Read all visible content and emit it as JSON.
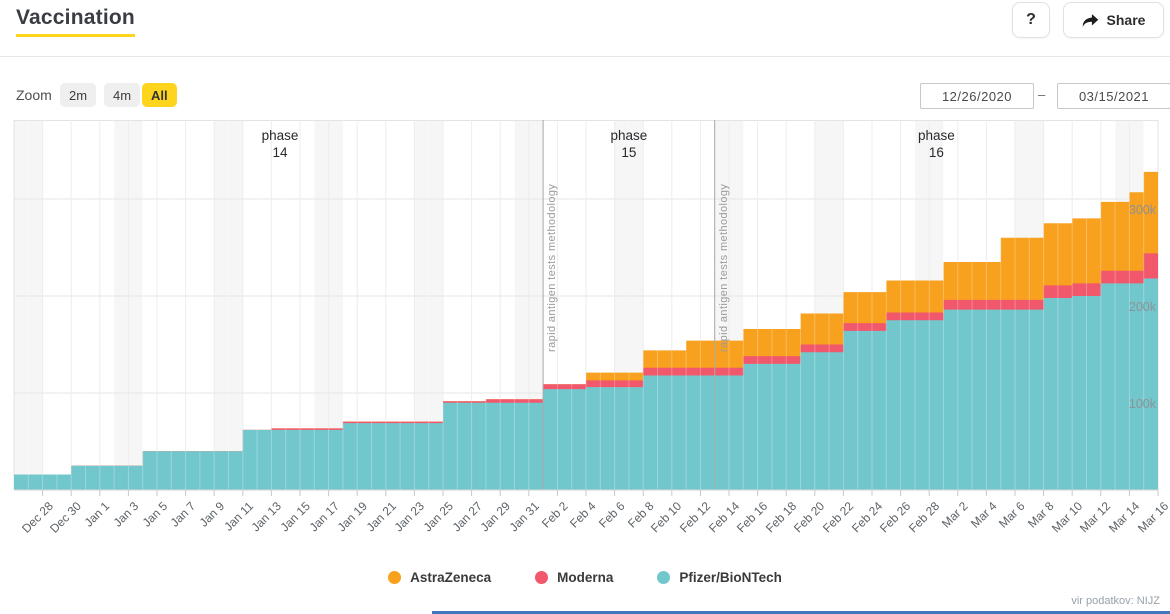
{
  "header": {
    "title": "Vaccination",
    "help_label": "?",
    "share_label": "Share"
  },
  "controls": {
    "zoom_label": "Zoom",
    "range_buttons": [
      {
        "label": "2m",
        "active": false
      },
      {
        "label": "4m",
        "active": false
      },
      {
        "label": "All",
        "active": true
      }
    ],
    "date_from": "12/26/2020",
    "date_separator": "–",
    "date_to": "03/15/2021"
  },
  "colors": {
    "accent_yellow": "#ffd41d",
    "astrazeneca": "#F8A11E",
    "moderna": "#F2586B",
    "pfizer": "#72C7CD",
    "weekend_band": "#f6f6f6",
    "gridline": "#e8e8e8",
    "annotation_line": "#a6a6a6"
  },
  "chart_data": {
    "type": "area",
    "stacking": "stacked cumulative steps (doses by manufacturer)",
    "x_range": [
      "Dec 26, 2020",
      "Mar 16, 2021"
    ],
    "x_tick_labels": [
      "Dec 28",
      "Dec 30",
      "Jan 1",
      "Jan 3",
      "Jan 5",
      "Jan 7",
      "Jan 9",
      "Jan 11",
      "Jan 13",
      "Jan 15",
      "Jan 17",
      "Jan 19",
      "Jan 21",
      "Jan 23",
      "Jan 25",
      "Jan 27",
      "Jan 29",
      "Jan 31",
      "Feb 2",
      "Feb 4",
      "Feb 6",
      "Feb 8",
      "Feb 10",
      "Feb 12",
      "Feb 14",
      "Feb 16",
      "Feb 18",
      "Feb 20",
      "Feb 22",
      "Feb 24",
      "Feb 26",
      "Feb 28",
      "Mar 2",
      "Mar 4",
      "Mar 6",
      "Mar 8",
      "Mar 10",
      "Mar 12",
      "Mar 14",
      "Mar 16"
    ],
    "y_ticks": [
      {
        "value_thousands": 100,
        "label": "100k"
      },
      {
        "value_thousands": 200,
        "label": "200k"
      },
      {
        "value_thousands": 300,
        "label": "300k"
      }
    ],
    "y_max_thousands": 381,
    "series": [
      {
        "name": "Pfizer/BioNTech",
        "color": "#72C7CD",
        "days": [
          0,
          4,
          9,
          16,
          18,
          23,
          30,
          33,
          37,
          40,
          44,
          47,
          51,
          55,
          58,
          61,
          65,
          69,
          72,
          74,
          76,
          78,
          79
        ],
        "cumulative_thousands": [
          16,
          25,
          40,
          62,
          62,
          69,
          90,
          90,
          104,
          106,
          118,
          118,
          130,
          142,
          164,
          175,
          186,
          186,
          198,
          200,
          213,
          213,
          218
        ]
      },
      {
        "name": "Moderna",
        "color": "#F2586B",
        "days": [
          0,
          4,
          9,
          16,
          18,
          23,
          30,
          33,
          37,
          40,
          44,
          47,
          51,
          55,
          58,
          61,
          65,
          69,
          72,
          74,
          76,
          78,
          79
        ],
        "cumulative_thousands": [
          0,
          0,
          0,
          0,
          1.5,
          1.5,
          1.5,
          3.5,
          5,
          7,
          8,
          8,
          8,
          8,
          8,
          8,
          10,
          10,
          13,
          13,
          13,
          13,
          26
        ]
      },
      {
        "name": "AstraZeneca",
        "color": "#F8A11E",
        "days": [
          0,
          4,
          9,
          16,
          18,
          23,
          30,
          33,
          37,
          40,
          44,
          47,
          51,
          55,
          58,
          61,
          65,
          69,
          72,
          74,
          76,
          78,
          79
        ],
        "cumulative_thousands": [
          0,
          0,
          0,
          0,
          0,
          0,
          0,
          0,
          0,
          8,
          18,
          28,
          28,
          32,
          32,
          33,
          39,
          64,
          64,
          67,
          71,
          81,
          84
        ]
      }
    ],
    "legend": [
      {
        "label": "AstraZeneca",
        "color": "#F8A11E"
      },
      {
        "label": "Moderna",
        "color": "#F2586B"
      },
      {
        "label": "Pfizer/BioNTech",
        "color": "#72C7CD"
      }
    ],
    "annotations": {
      "phases": [
        {
          "line1": "phase",
          "line2": "14",
          "day": 18.6
        },
        {
          "line1": "phase",
          "line2": "15",
          "day": 43.0
        },
        {
          "line1": "phase",
          "line2": "16",
          "day": 64.5
        }
      ],
      "vlines": [
        {
          "day": 37,
          "label": "rapid antigen tests methodology"
        },
        {
          "day": 49,
          "label": "rapid antigen tests methodology"
        }
      ]
    },
    "weekend_band_start_days": [
      0,
      7,
      14,
      21,
      28,
      35,
      42,
      49,
      56,
      63,
      70,
      77
    ],
    "source": "vir podatkov: NIJZ"
  }
}
